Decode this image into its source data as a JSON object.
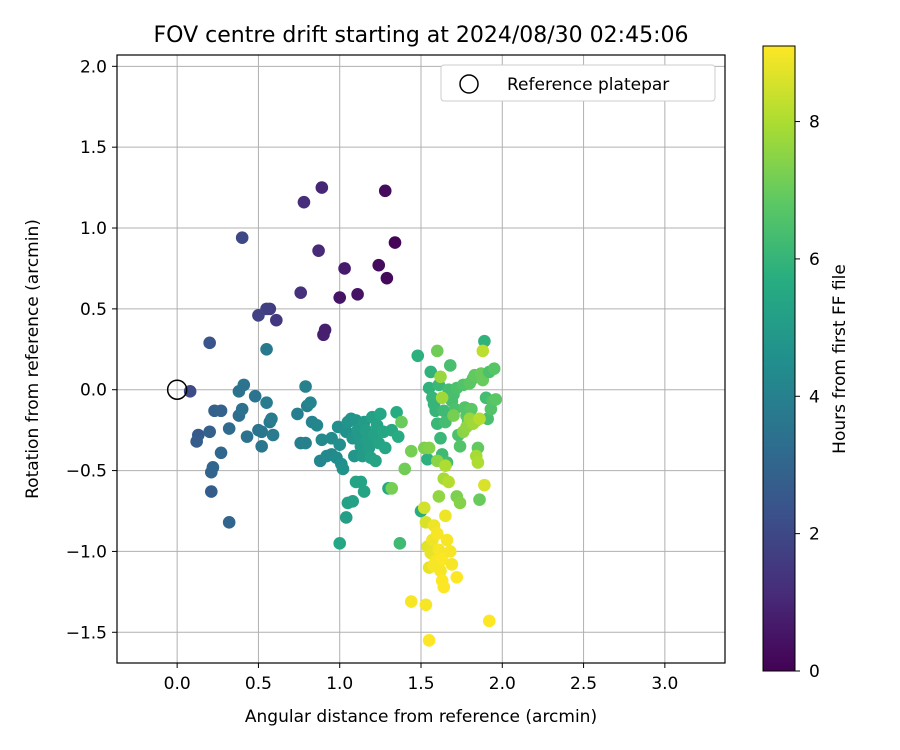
{
  "chart_data": {
    "type": "scatter",
    "title": "FOV centre drift starting at 2024/08/30 02:45:06",
    "xlabel": "Angular distance from reference (arcmin)",
    "ylabel": "Rotation from reference (arcmin)",
    "xlim": [
      -0.37,
      3.37
    ],
    "ylim": [
      -1.69,
      2.07
    ],
    "xticks": [
      0.0,
      0.5,
      1.0,
      1.5,
      2.0,
      2.5,
      3.0
    ],
    "xtick_labels": [
      "0.0",
      "0.5",
      "1.0",
      "1.5",
      "2.0",
      "2.5",
      "3.0"
    ],
    "yticks": [
      -1.5,
      -1.0,
      -0.5,
      0.0,
      0.5,
      1.0,
      1.5,
      2.0
    ],
    "ytick_labels": [
      "−1.5",
      "−1.0",
      "−0.5",
      "0.0",
      "0.5",
      "1.0",
      "1.5",
      "2.0"
    ],
    "grid": true,
    "legend": {
      "placement": "top-right",
      "entries": [
        "Reference platepar"
      ]
    },
    "reference_point": {
      "x": 0.0,
      "y": 0.0
    },
    "colorbar": {
      "label": "Hours from first FF file",
      "colormap": "viridis",
      "range": [
        0,
        9.1
      ],
      "ticks": [
        0,
        2,
        4,
        6,
        8
      ],
      "tick_labels": [
        "0",
        "2",
        "4",
        "6",
        "8"
      ]
    },
    "point_columns": [
      "x",
      "y",
      "hours"
    ],
    "points": [
      [
        1.34,
        0.91,
        0.1
      ],
      [
        1.29,
        0.69,
        0.2
      ],
      [
        1.24,
        0.77,
        0.3
      ],
      [
        1.28,
        1.23,
        0.3
      ],
      [
        1.11,
        0.59,
        0.5
      ],
      [
        1.0,
        0.57,
        0.5
      ],
      [
        1.03,
        0.75,
        0.7
      ],
      [
        0.91,
        0.37,
        0.8
      ],
      [
        0.9,
        0.34,
        0.8
      ],
      [
        0.89,
        1.25,
        1.0
      ],
      [
        0.87,
        0.86,
        1.1
      ],
      [
        0.78,
        1.16,
        1.2
      ],
      [
        0.76,
        0.6,
        1.3
      ],
      [
        0.61,
        0.43,
        1.5
      ],
      [
        0.57,
        0.5,
        1.6
      ],
      [
        0.55,
        0.5,
        1.7
      ],
      [
        0.5,
        0.46,
        1.8
      ],
      [
        0.4,
        0.94,
        2.0
      ],
      [
        0.08,
        -0.01,
        2.1
      ],
      [
        0.2,
        0.29,
        2.4
      ],
      [
        0.13,
        -0.28,
        2.6
      ],
      [
        0.12,
        -0.32,
        2.7
      ],
      [
        0.2,
        -0.26,
        2.8
      ],
      [
        0.23,
        -0.13,
        2.8
      ],
      [
        0.27,
        -0.13,
        2.9
      ],
      [
        0.22,
        -0.48,
        3.0
      ],
      [
        0.21,
        -0.51,
        3.0
      ],
      [
        0.21,
        -0.63,
        2.7
      ],
      [
        0.32,
        -0.82,
        3.0
      ],
      [
        0.27,
        -0.39,
        3.1
      ],
      [
        0.32,
        -0.24,
        3.2
      ],
      [
        0.38,
        -0.16,
        3.3
      ],
      [
        0.4,
        -0.12,
        3.4
      ],
      [
        0.38,
        -0.01,
        3.4
      ],
      [
        0.41,
        0.03,
        3.5
      ],
      [
        0.43,
        -0.29,
        3.4
      ],
      [
        0.48,
        -0.04,
        3.5
      ],
      [
        0.5,
        -0.25,
        3.5
      ],
      [
        0.52,
        -0.26,
        3.6
      ],
      [
        0.52,
        -0.35,
        3.6
      ],
      [
        0.55,
        0.25,
        3.7
      ],
      [
        0.57,
        -0.2,
        3.7
      ],
      [
        0.58,
        -0.18,
        3.8
      ],
      [
        0.55,
        -0.08,
        3.8
      ],
      [
        0.59,
        -0.28,
        3.8
      ],
      [
        0.74,
        -0.15,
        3.9
      ],
      [
        0.76,
        -0.33,
        3.9
      ],
      [
        0.79,
        -0.33,
        4.0
      ],
      [
        0.79,
        0.02,
        4.0
      ],
      [
        0.8,
        -0.1,
        4.0
      ],
      [
        0.82,
        -0.08,
        4.1
      ],
      [
        0.83,
        -0.2,
        4.1
      ],
      [
        0.86,
        -0.22,
        4.2
      ],
      [
        0.88,
        -0.44,
        4.2
      ],
      [
        0.89,
        -0.31,
        4.3
      ],
      [
        0.92,
        -0.41,
        4.3
      ],
      [
        0.95,
        -0.4,
        4.3
      ],
      [
        0.95,
        -0.3,
        4.4
      ],
      [
        0.98,
        -0.42,
        4.4
      ],
      [
        0.99,
        -0.23,
        4.5
      ],
      [
        1.0,
        -0.34,
        4.5
      ],
      [
        1.01,
        -0.46,
        4.5
      ],
      [
        1.02,
        -0.49,
        4.6
      ],
      [
        1.04,
        -0.26,
        4.6
      ],
      [
        1.05,
        -0.2,
        4.7
      ],
      [
        1.07,
        -0.18,
        4.7
      ],
      [
        1.08,
        -0.3,
        4.8
      ],
      [
        1.09,
        -0.41,
        4.8
      ],
      [
        1.1,
        -0.19,
        4.8
      ],
      [
        1.11,
        -0.25,
        4.9
      ],
      [
        1.12,
        -0.3,
        4.9
      ],
      [
        1.13,
        -0.35,
        5.0
      ],
      [
        1.14,
        -0.41,
        5.0
      ],
      [
        1.15,
        -0.2,
        5.0
      ],
      [
        1.16,
        -0.25,
        5.1
      ],
      [
        1.17,
        -0.31,
        5.1
      ],
      [
        1.18,
        -0.36,
        5.1
      ],
      [
        1.19,
        -0.42,
        5.2
      ],
      [
        1.2,
        -0.17,
        5.2
      ],
      [
        1.21,
        -0.28,
        5.2
      ],
      [
        1.22,
        -0.44,
        5.3
      ],
      [
        1.23,
        -0.22,
        5.3
      ],
      [
        1.24,
        -0.33,
        5.3
      ],
      [
        1.25,
        -0.15,
        5.4
      ],
      [
        1.27,
        -0.26,
        5.4
      ],
      [
        1.28,
        -0.36,
        5.4
      ],
      [
        1.3,
        -0.61,
        5.5
      ],
      [
        1.32,
        -0.25,
        5.5
      ],
      [
        1.35,
        -0.14,
        5.6
      ],
      [
        1.36,
        -0.29,
        5.6
      ],
      [
        1.04,
        -0.79,
        5.1
      ],
      [
        1.05,
        -0.7,
        5.2
      ],
      [
        1.08,
        -0.69,
        5.2
      ],
      [
        1.1,
        -0.57,
        5.3
      ],
      [
        1.13,
        -0.57,
        5.3
      ],
      [
        1.15,
        -0.63,
        5.3
      ],
      [
        1.0,
        -0.95,
        5.4
      ],
      [
        1.5,
        -0.75,
        5.7
      ],
      [
        1.48,
        0.21,
        5.8
      ],
      [
        1.54,
        -0.43,
        5.8
      ],
      [
        1.55,
        0.01,
        5.9
      ],
      [
        1.56,
        0.11,
        5.9
      ],
      [
        1.57,
        -0.05,
        6.0
      ],
      [
        1.58,
        -0.09,
        6.0
      ],
      [
        1.59,
        -0.13,
        6.0
      ],
      [
        1.6,
        -0.21,
        6.1
      ],
      [
        1.61,
        0.03,
        6.1
      ],
      [
        1.62,
        -0.3,
        6.1
      ],
      [
        1.63,
        -0.4,
        6.2
      ],
      [
        1.64,
        -0.13,
        6.2
      ],
      [
        1.65,
        -0.2,
        6.3
      ],
      [
        1.66,
        -0.45,
        6.3
      ],
      [
        1.67,
        0.0,
        6.3
      ],
      [
        1.68,
        0.15,
        6.4
      ],
      [
        1.69,
        -0.07,
        6.4
      ],
      [
        1.7,
        -0.03,
        6.4
      ],
      [
        1.71,
        -0.12,
        6.5
      ],
      [
        1.72,
        0.01,
        6.5
      ],
      [
        1.73,
        -0.28,
        6.5
      ],
      [
        1.74,
        -0.35,
        6.6
      ],
      [
        1.76,
        0.03,
        6.6
      ],
      [
        1.77,
        -0.11,
        6.6
      ],
      [
        1.78,
        -0.16,
        6.7
      ],
      [
        1.79,
        -0.2,
        6.7
      ],
      [
        1.8,
        0.04,
        6.8
      ],
      [
        1.81,
        -0.12,
        6.8
      ],
      [
        1.82,
        0.07,
        6.8
      ],
      [
        1.83,
        0.09,
        6.9
      ],
      [
        1.84,
        -0.19,
        6.9
      ],
      [
        1.85,
        -0.36,
        6.9
      ],
      [
        1.86,
        -0.68,
        7.0
      ],
      [
        1.87,
        0.1,
        7.0
      ],
      [
        1.88,
        0.06,
        7.0
      ],
      [
        1.89,
        0.3,
        5.9
      ],
      [
        1.9,
        -0.05,
        6.3
      ],
      [
        1.91,
        -0.18,
        6.4
      ],
      [
        1.92,
        0.11,
        6.5
      ],
      [
        1.93,
        -0.12,
        6.6
      ],
      [
        1.94,
        -0.07,
        6.6
      ],
      [
        1.95,
        0.13,
        6.7
      ],
      [
        1.96,
        -0.06,
        6.8
      ],
      [
        1.37,
        -0.95,
        6.2
      ],
      [
        1.38,
        -0.2,
        7.0
      ],
      [
        1.4,
        -0.49,
        7.1
      ],
      [
        1.44,
        -0.38,
        7.2
      ],
      [
        1.52,
        -0.36,
        7.3
      ],
      [
        1.55,
        -0.36,
        7.4
      ],
      [
        1.6,
        -0.44,
        7.5
      ],
      [
        1.61,
        -0.66,
        7.6
      ],
      [
        1.62,
        0.08,
        7.7
      ],
      [
        1.63,
        -0.05,
        7.8
      ],
      [
        1.64,
        -0.55,
        7.9
      ],
      [
        1.65,
        -0.47,
        8.0
      ],
      [
        1.67,
        -0.57,
        8.1
      ],
      [
        1.6,
        0.24,
        7.1
      ],
      [
        1.7,
        -0.16,
        7.2
      ],
      [
        1.72,
        -0.66,
        7.3
      ],
      [
        1.74,
        -0.7,
        7.4
      ],
      [
        1.76,
        -0.26,
        7.5
      ],
      [
        1.78,
        -0.23,
        7.6
      ],
      [
        1.8,
        -0.18,
        7.7
      ],
      [
        1.82,
        -0.21,
        7.8
      ],
      [
        1.84,
        -0.41,
        7.9
      ],
      [
        1.85,
        -0.45,
        8.0
      ],
      [
        1.86,
        -0.18,
        8.1
      ],
      [
        1.88,
        0.24,
        8.2
      ],
      [
        1.89,
        -0.59,
        8.6
      ],
      [
        1.32,
        -0.61,
        7.2
      ],
      [
        1.52,
        -0.73,
        8.5
      ],
      [
        1.53,
        -0.82,
        8.6
      ],
      [
        1.54,
        -0.97,
        8.7
      ],
      [
        1.55,
        -1.1,
        8.8
      ],
      [
        1.56,
        -1.01,
        8.8
      ],
      [
        1.57,
        -0.93,
        8.9
      ],
      [
        1.58,
        -0.84,
        8.9
      ],
      [
        1.59,
        -1.06,
        9.0
      ],
      [
        1.6,
        -0.89,
        9.0
      ],
      [
        1.61,
        -0.99,
        9.0
      ],
      [
        1.62,
        -1.12,
        9.0
      ],
      [
        1.63,
        -1.05,
        9.1
      ],
      [
        1.64,
        -1.22,
        9.1
      ],
      [
        1.65,
        -0.78,
        8.9
      ],
      [
        1.66,
        -0.93,
        9.0
      ],
      [
        1.68,
        -1.0,
        9.0
      ],
      [
        1.69,
        -1.08,
        9.0
      ],
      [
        1.72,
        -1.16,
        9.1
      ],
      [
        1.53,
        -1.33,
        9.0
      ],
      [
        1.55,
        -1.55,
        9.1
      ],
      [
        1.44,
        -1.31,
        9.0
      ],
      [
        1.92,
        -1.43,
        9.1
      ],
      [
        1.63,
        -1.18,
        9.1
      ],
      [
        1.58,
        -1.09,
        9.0
      ]
    ]
  }
}
